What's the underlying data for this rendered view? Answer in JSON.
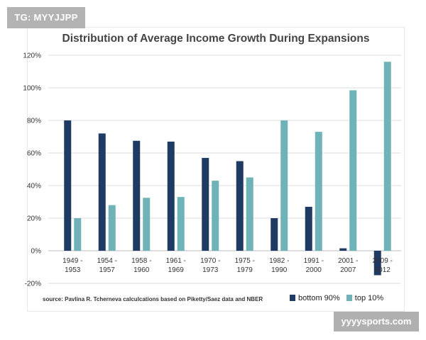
{
  "watermark": {
    "text": "TG: MYYJJPP"
  },
  "brand": {
    "text": "yyyysports.com"
  },
  "source": {
    "text": "source: Pavlina R. Tcherneva calculcations based on Piketty/Saez data and NBER"
  },
  "colors": {
    "bottom": "#1f3a63",
    "top": "#6fb3b8",
    "grid": "#dcdcdc",
    "axis": "#bdbdbd"
  },
  "chart_data": {
    "type": "bar",
    "title": "Distribution of Average Income Growth During Expansions",
    "xlabel": "",
    "ylabel": "",
    "ylim": [
      -20,
      120
    ],
    "yticks": [
      -20,
      0,
      20,
      40,
      60,
      80,
      100,
      120
    ],
    "ytick_labels": [
      "-20%",
      "0%",
      "20%",
      "40%",
      "60%",
      "80%",
      "100%",
      "120%"
    ],
    "grid": true,
    "legend_position": "bottom-right",
    "categories": [
      [
        "1949 -",
        "1953"
      ],
      [
        "1954 -",
        "1957"
      ],
      [
        "1958 -",
        "1960"
      ],
      [
        "1961 -",
        "1969"
      ],
      [
        "1970 -",
        "1973"
      ],
      [
        "1975 -",
        "1979"
      ],
      [
        "1982 -",
        "1990"
      ],
      [
        "1991 -",
        "2000"
      ],
      [
        "2001 -",
        "2007"
      ],
      [
        "2009 -",
        "2012"
      ]
    ],
    "series": [
      {
        "name": "bottom 90%",
        "values": [
          80,
          72,
          67.5,
          67,
          57,
          55,
          20,
          27,
          1.5,
          -15
        ]
      },
      {
        "name": "top 10%",
        "values": [
          20,
          28,
          32.5,
          33,
          43,
          45,
          80,
          73,
          98.5,
          116
        ]
      }
    ]
  }
}
